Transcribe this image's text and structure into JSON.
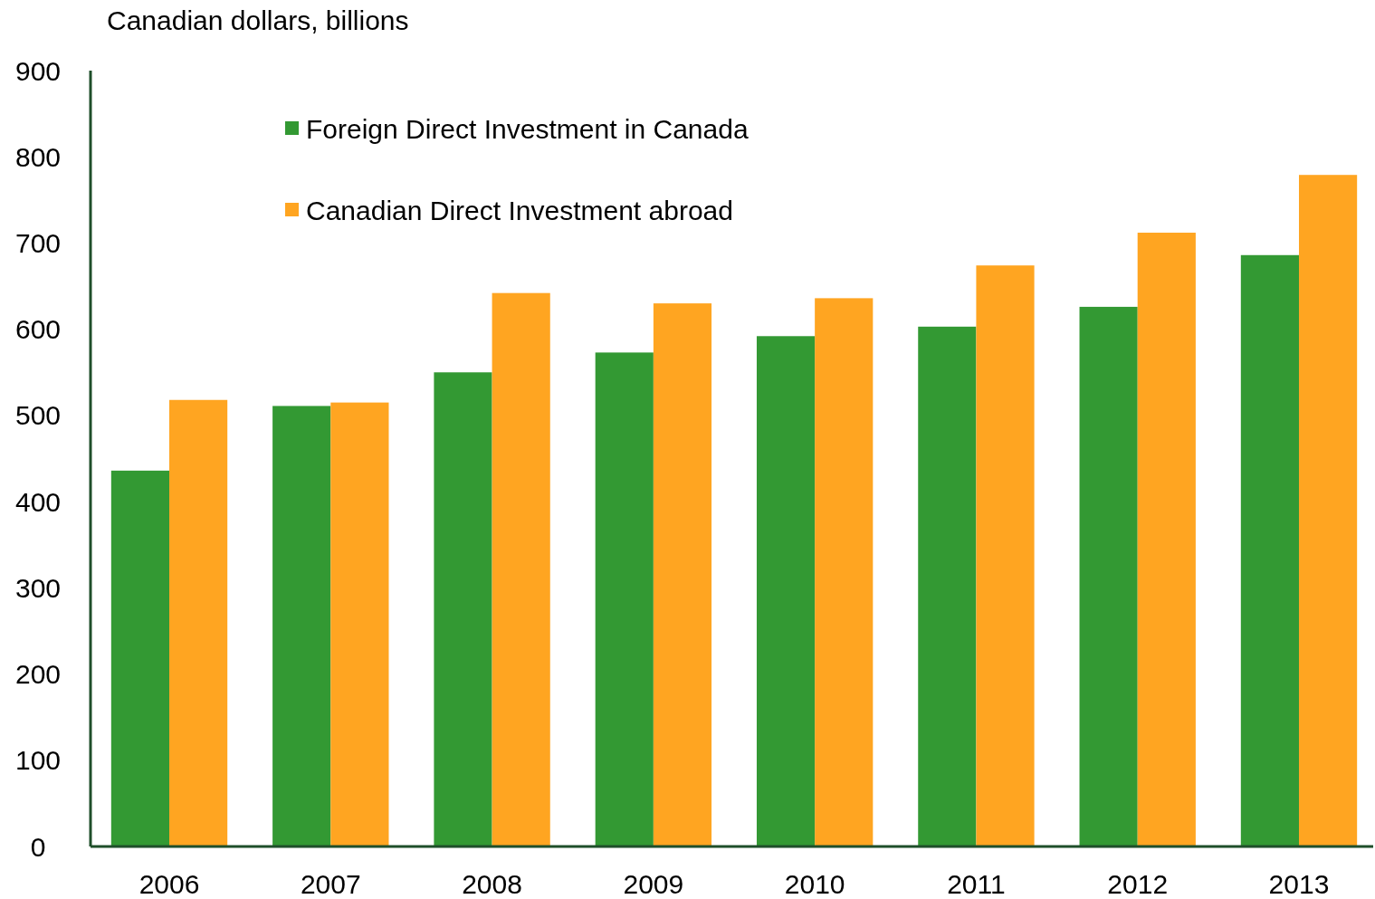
{
  "chart_data": {
    "type": "bar",
    "ylabel": "Canadian dollars, billions",
    "categories": [
      "2006",
      "2007",
      "2008",
      "2009",
      "2010",
      "2011",
      "2012",
      "2013"
    ],
    "series": [
      {
        "name": "Foreign Direct Investment in Canada",
        "color": "#339933",
        "values": [
          436,
          511,
          550,
          573,
          592,
          603,
          626,
          686
        ]
      },
      {
        "name": "Canadian Direct Investment abroad",
        "color": "#ffa521",
        "values": [
          518,
          515,
          642,
          630,
          636,
          674,
          712,
          779
        ]
      }
    ],
    "ylim": [
      0,
      900
    ],
    "yticks": [
      0,
      100,
      200,
      300,
      400,
      500,
      600,
      700,
      800,
      900
    ],
    "grid": false,
    "legend": "top left"
  }
}
